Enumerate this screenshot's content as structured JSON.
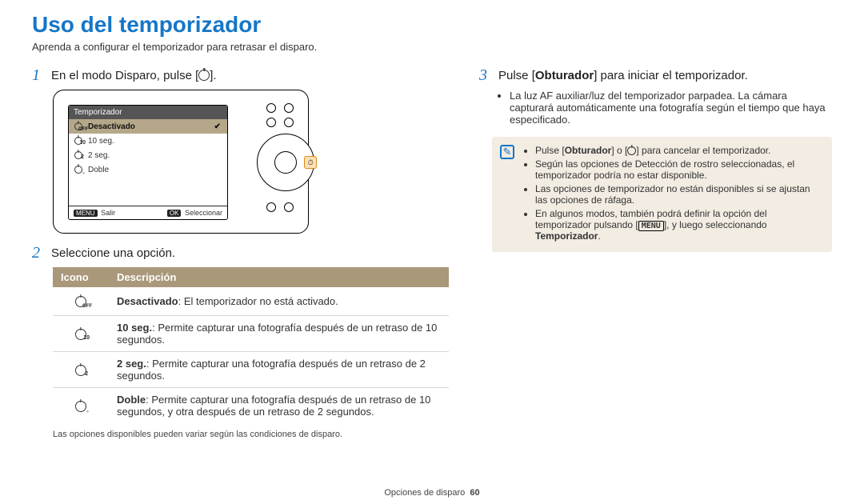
{
  "title": "Uso del temporizador",
  "subtitle": "Aprenda a configurar el temporizador para retrasar el disparo.",
  "left": {
    "step1": "En el modo Disparo, pulse [",
    "step1_end": "].",
    "camera": {
      "screen_title": "Temporizador",
      "rows": [
        {
          "label": "Desactivado",
          "hl": true,
          "check": true
        },
        {
          "label": "10 seg."
        },
        {
          "label": "2 seg."
        },
        {
          "label": "Doble"
        }
      ],
      "footer_left_kbd": "MENU",
      "footer_left": "Salir",
      "footer_right_kbd": "OK",
      "footer_right": "Seleccionar"
    },
    "step2": "Seleccione una opción.",
    "table": {
      "header_icon": "Icono",
      "header_desc": "Descripción",
      "rows": [
        {
          "icon_class": "off",
          "b": "Desactivado",
          "t": ": El temporizador no está activado."
        },
        {
          "icon_class": "t10",
          "b": "10 seg.",
          "t": ": Permite capturar una fotografía después de un retraso de 10 segundos."
        },
        {
          "icon_class": "t2",
          "b": "2 seg.",
          "t": ": Permite capturar una fotografía después de un retraso de 2 segundos."
        },
        {
          "icon_class": "dbl",
          "b": "Doble",
          "t": ": Permite capturar una fotografía después de un retraso de 10 segundos, y otra después de un retraso de 2 segundos."
        }
      ]
    },
    "footnote": "Las opciones disponibles pueden variar según las condiciones de disparo."
  },
  "right": {
    "step3_a": "Pulse [",
    "step3_b": "Obturador",
    "step3_c": "] para iniciar el temporizador.",
    "sub_bullet": "La luz AF auxiliar/luz del temporizador parpadea. La cámara capturará automáticamente una fotografía según el tiempo que haya especificado.",
    "note": {
      "items": [
        {
          "pre": "Pulse [",
          "b": "Obturador",
          "mid": "] o [",
          "icon": true,
          "post": "] para cancelar el temporizador."
        },
        {
          "text": "Según las opciones de Detección de rostro seleccionadas, el temporizador podría no estar disponible."
        },
        {
          "text": "Las opciones de temporizador no están disponibles si se ajustan las opciones de ráfaga."
        },
        {
          "pre2": "En algunos modos, también podrá definir la opción del temporizador pulsando [",
          "kbd": "MENU",
          "mid2": "], y luego seleccionando ",
          "b2": "Temporizador",
          "post2": "."
        }
      ]
    }
  },
  "footer_section": "Opciones de disparo",
  "footer_page": "60",
  "colors": {
    "accent": "#1576c7",
    "table_header": "#a99879",
    "note_bg": "#f2ece2"
  }
}
